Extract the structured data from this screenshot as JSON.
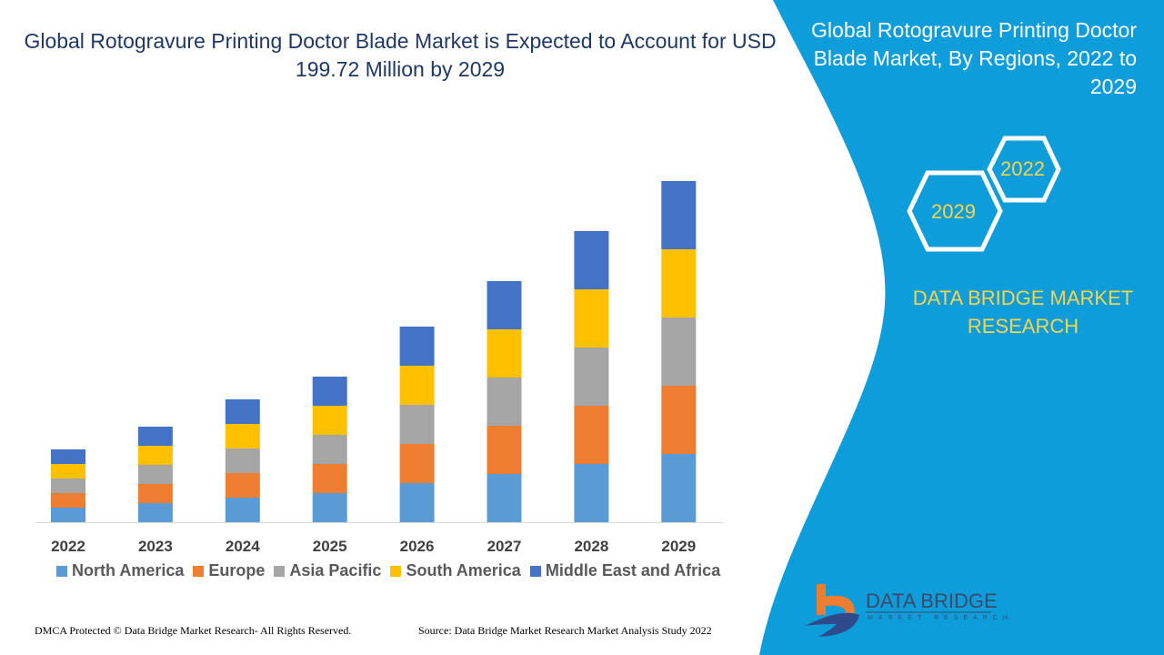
{
  "header": {
    "title": "Global Rotogravure Printing Doctor Blade Market is Expected to Account for USD 199.72 Million by 2029"
  },
  "side_panel": {
    "title": "Global Rotogravure Printing Doctor Blade Market, By Regions, 2022 to 2029",
    "hex_start": "2022",
    "hex_end": "2029",
    "brand": "DATA BRIDGE MARKET RESEARCH",
    "logo_text": "DATA BRIDGE",
    "logo_subtext": "MARKET RESEARCH",
    "panel_color": "#0d9ddb"
  },
  "footer": {
    "copyright": "DMCA Protected © Data Bridge Market Research- All Rights Reserved.",
    "source": "Source: Data Bridge Market Research Market Analysis Study 2022"
  },
  "chart_data": {
    "type": "bar",
    "stacked": true,
    "title": "",
    "xlabel": "",
    "ylabel": "",
    "grid": false,
    "legend_position": "bottom",
    "categories": [
      "2022",
      "2023",
      "2024",
      "2025",
      "2026",
      "2027",
      "2028",
      "2029"
    ],
    "series": [
      {
        "name": "North America",
        "color": "#5b9bd5",
        "values": [
          16,
          21,
          27,
          32,
          43,
          53,
          64,
          75
        ]
      },
      {
        "name": "Europe",
        "color": "#ed7d31",
        "values": [
          16,
          21,
          27,
          32,
          43,
          53,
          64,
          75
        ]
      },
      {
        "name": "Asia Pacific",
        "color": "#a5a5a5",
        "values": [
          16,
          21,
          27,
          32,
          43,
          53,
          64,
          75
        ]
      },
      {
        "name": "South America",
        "color": "#ffc000",
        "values": [
          16,
          21,
          27,
          32,
          43,
          53,
          64,
          75
        ]
      },
      {
        "name": "Middle East and Africa",
        "color": "#4472c4",
        "values": [
          16,
          21,
          27,
          32,
          43,
          53,
          64,
          75
        ]
      }
    ]
  }
}
